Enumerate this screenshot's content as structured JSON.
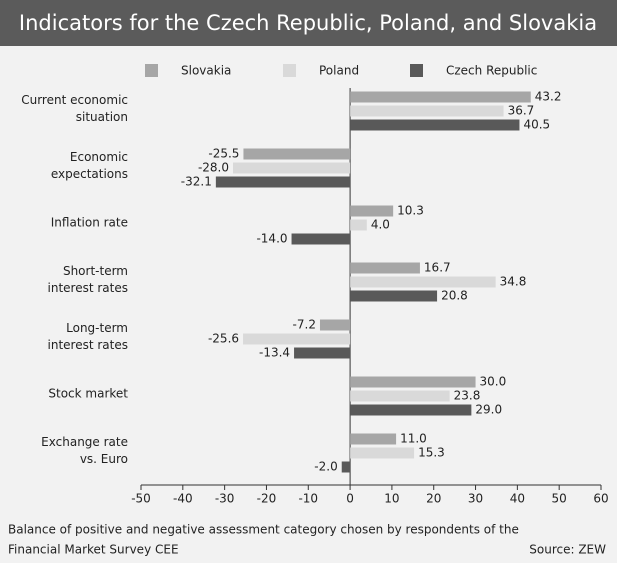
{
  "chart_data": {
    "type": "bar",
    "orientation": "horizontal",
    "title": "Indicators for the Czech Republic, Poland, and Slovakia",
    "categories": [
      [
        "Current economic",
        "situation"
      ],
      [
        "Economic",
        "expectations"
      ],
      [
        "Inflation rate"
      ],
      [
        "Short-term",
        "interest rates"
      ],
      [
        "Long-term",
        "interest rates"
      ],
      [
        "Stock market"
      ],
      [
        "Exchange rate",
        "vs. Euro"
      ]
    ],
    "series": [
      {
        "name": "Slovakia",
        "color": "#a6a6a6",
        "values": [
          43.2,
          -25.5,
          10.3,
          16.7,
          -7.2,
          30.0,
          11.0
        ],
        "value_labels": [
          "43.2",
          "-25.5",
          "10.3",
          "16.7",
          "-7.2",
          "30.0",
          "11.0"
        ]
      },
      {
        "name": "Poland",
        "color": "#d9d9d9",
        "values": [
          36.7,
          -28.0,
          4.0,
          34.8,
          -25.6,
          23.8,
          15.3
        ],
        "value_labels": [
          "36.7",
          "-28.0",
          "4.0",
          "34.8",
          "-25.6",
          "23.8",
          "15.3"
        ]
      },
      {
        "name": "Czech Republic",
        "color": "#595959",
        "values": [
          40.5,
          -32.1,
          -14.0,
          20.8,
          -13.4,
          29.0,
          -2.0
        ],
        "value_labels": [
          "40.5",
          "-32.1",
          "-14.0",
          "20.8",
          "-13.4",
          "29.0",
          "-2.0"
        ]
      }
    ],
    "xlim": [
      -50,
      60
    ],
    "xticks": [
      -50,
      -40,
      -30,
      -20,
      -10,
      0,
      10,
      20,
      30,
      40,
      50,
      60
    ],
    "legend": "top",
    "footnote": [
      "Balance of positive and negative assessment category chosen by respondents of the",
      "Financial Market Survey CEE"
    ],
    "source": "Source: ZEW"
  }
}
